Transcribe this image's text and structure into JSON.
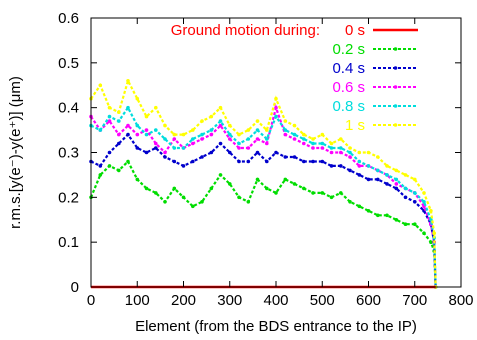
{
  "chart_data": {
    "type": "line",
    "xlabel": "Element (from the BDS entrance to the IP)",
    "ylabel": "r.m.s.[y(e⁻)-y(e⁺)] (μm)",
    "xlim": [
      0,
      800
    ],
    "ylim": [
      0,
      0.6
    ],
    "xticks": [
      0,
      100,
      200,
      300,
      400,
      500,
      600,
      700,
      800
    ],
    "yticks": [
      0,
      0.1,
      0.2,
      0.3,
      0.4,
      0.5,
      0.6
    ],
    "xtick_labels": [
      "0",
      "100",
      "200",
      "300",
      "400",
      "500",
      "600",
      "700",
      "800"
    ],
    "ytick_labels": [
      "0",
      "0.1",
      "0.2",
      "0.3",
      "0.4",
      "0.5",
      "0.6"
    ],
    "grid": false,
    "legend_position": "top-right",
    "legend_title": "Ground motion during:",
    "legend_title_color": "#ff0000",
    "series": [
      {
        "name": "0 s",
        "color": "#ff0000",
        "solid": true,
        "x": [
          0,
          100,
          200,
          300,
          400,
          500,
          600,
          700,
          745
        ],
        "y": [
          0,
          0,
          0,
          0,
          0,
          0,
          0,
          0,
          0
        ]
      },
      {
        "name": "0.2 s",
        "color": "#00dd00",
        "x": [
          0,
          20,
          40,
          60,
          80,
          100,
          120,
          140,
          160,
          180,
          200,
          220,
          240,
          260,
          280,
          300,
          320,
          340,
          360,
          380,
          400,
          420,
          440,
          460,
          480,
          500,
          520,
          540,
          560,
          580,
          600,
          620,
          640,
          660,
          680,
          700,
          720,
          735,
          742,
          745
        ],
        "y": [
          0.2,
          0.25,
          0.27,
          0.26,
          0.28,
          0.24,
          0.22,
          0.21,
          0.19,
          0.22,
          0.2,
          0.18,
          0.19,
          0.22,
          0.25,
          0.23,
          0.2,
          0.19,
          0.24,
          0.22,
          0.21,
          0.24,
          0.23,
          0.22,
          0.21,
          0.21,
          0.2,
          0.21,
          0.19,
          0.18,
          0.17,
          0.16,
          0.16,
          0.15,
          0.14,
          0.14,
          0.12,
          0.1,
          0.08,
          0
        ]
      },
      {
        "name": "0.4 s",
        "color": "#0000cc",
        "x": [
          0,
          20,
          40,
          60,
          80,
          100,
          120,
          140,
          160,
          180,
          200,
          220,
          240,
          260,
          280,
          300,
          320,
          340,
          360,
          380,
          400,
          420,
          440,
          460,
          480,
          500,
          520,
          540,
          560,
          580,
          600,
          620,
          640,
          660,
          680,
          700,
          720,
          735,
          742,
          745
        ],
        "y": [
          0.28,
          0.27,
          0.3,
          0.32,
          0.34,
          0.31,
          0.3,
          0.31,
          0.29,
          0.28,
          0.27,
          0.28,
          0.29,
          0.3,
          0.32,
          0.3,
          0.28,
          0.28,
          0.3,
          0.28,
          0.3,
          0.29,
          0.29,
          0.28,
          0.28,
          0.28,
          0.27,
          0.27,
          0.26,
          0.25,
          0.24,
          0.24,
          0.23,
          0.22,
          0.2,
          0.19,
          0.17,
          0.14,
          0.1,
          0
        ]
      },
      {
        "name": "0.6 s",
        "color": "#ff00ff",
        "x": [
          0,
          20,
          40,
          60,
          80,
          100,
          120,
          140,
          160,
          180,
          200,
          220,
          240,
          260,
          280,
          300,
          320,
          340,
          360,
          380,
          400,
          420,
          440,
          460,
          480,
          500,
          520,
          540,
          560,
          580,
          600,
          620,
          640,
          660,
          680,
          700,
          720,
          735,
          742,
          745
        ],
        "y": [
          0.38,
          0.35,
          0.37,
          0.34,
          0.36,
          0.34,
          0.35,
          0.32,
          0.3,
          0.33,
          0.31,
          0.32,
          0.33,
          0.34,
          0.36,
          0.33,
          0.31,
          0.31,
          0.33,
          0.32,
          0.4,
          0.34,
          0.33,
          0.32,
          0.31,
          0.31,
          0.3,
          0.3,
          0.29,
          0.27,
          0.27,
          0.26,
          0.25,
          0.23,
          0.22,
          0.21,
          0.18,
          0.14,
          0.1,
          0
        ]
      },
      {
        "name": "0.8 s",
        "color": "#00dddd",
        "x": [
          0,
          20,
          40,
          60,
          80,
          100,
          120,
          140,
          160,
          180,
          200,
          220,
          240,
          260,
          280,
          300,
          320,
          340,
          360,
          380,
          400,
          420,
          440,
          460,
          480,
          500,
          520,
          540,
          560,
          580,
          600,
          620,
          640,
          660,
          680,
          700,
          720,
          735,
          742,
          745
        ],
        "y": [
          0.36,
          0.35,
          0.38,
          0.37,
          0.4,
          0.36,
          0.34,
          0.35,
          0.33,
          0.31,
          0.31,
          0.33,
          0.34,
          0.35,
          0.37,
          0.34,
          0.32,
          0.33,
          0.35,
          0.33,
          0.38,
          0.35,
          0.34,
          0.33,
          0.32,
          0.32,
          0.31,
          0.31,
          0.3,
          0.28,
          0.27,
          0.26,
          0.25,
          0.24,
          0.22,
          0.21,
          0.19,
          0.15,
          0.11,
          0
        ]
      },
      {
        "name": "1 s",
        "color": "#ffff00",
        "x": [
          0,
          20,
          40,
          60,
          80,
          100,
          120,
          140,
          160,
          180,
          200,
          220,
          240,
          260,
          280,
          300,
          320,
          340,
          360,
          380,
          400,
          420,
          440,
          460,
          480,
          500,
          520,
          540,
          560,
          580,
          600,
          620,
          640,
          660,
          680,
          700,
          720,
          735,
          742,
          745
        ],
        "y": [
          0.42,
          0.45,
          0.4,
          0.39,
          0.46,
          0.42,
          0.38,
          0.4,
          0.36,
          0.34,
          0.34,
          0.35,
          0.37,
          0.38,
          0.4,
          0.36,
          0.34,
          0.35,
          0.37,
          0.35,
          0.42,
          0.37,
          0.36,
          0.34,
          0.33,
          0.34,
          0.32,
          0.33,
          0.31,
          0.3,
          0.3,
          0.29,
          0.27,
          0.26,
          0.25,
          0.24,
          0.21,
          0.17,
          0.12,
          0
        ]
      }
    ]
  }
}
